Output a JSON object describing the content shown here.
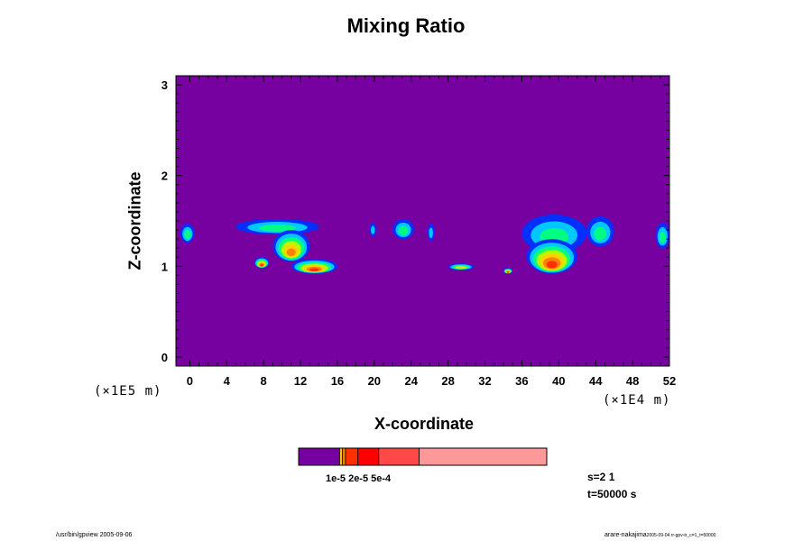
{
  "chart_data": {
    "type": "heatmap",
    "title": "Mixing Ratio",
    "xlabel": "X-coordinate",
    "ylabel": "Z-coordinate",
    "x_unit": "(×1E4 m)",
    "y_unit": "(×1E5 m)",
    "xlim": [
      -1.5,
      52
    ],
    "ylim": [
      -0.1,
      3.1
    ],
    "x_ticks": [
      0,
      4,
      8,
      12,
      16,
      20,
      24,
      28,
      32,
      36,
      40,
      44,
      48,
      52
    ],
    "y_ticks": [
      0,
      1,
      2,
      3
    ],
    "background_color": "#7700a0",
    "shade_colors": [
      "#0030ff",
      "#00c8ff",
      "#00ff80",
      "#b0ff00",
      "#ffd000",
      "#ff8000",
      "#ff3000"
    ],
    "clouds": [
      {
        "x": [
          -1.0,
          0.5
        ],
        "z_range": [
          1.26,
          1.47
        ],
        "peak": 2
      },
      {
        "x": [
          5.0,
          14.0
        ],
        "z_range": [
          1.35,
          1.52
        ],
        "peak": 2
      },
      {
        "x": [
          9.0,
          13.0
        ],
        "z_range": [
          1.05,
          1.4
        ],
        "peak": 5
      },
      {
        "x": [
          7.0,
          8.6
        ],
        "z_range": [
          0.98,
          1.1
        ],
        "peak": 6
      },
      {
        "x": [
          11.0,
          16.0
        ],
        "z_range": [
          0.92,
          1.08
        ],
        "peak": 6
      },
      {
        "x": [
          19.5,
          20.2
        ],
        "z_range": [
          1.33,
          1.48
        ],
        "peak": 1
      },
      {
        "x": [
          22.0,
          24.3
        ],
        "z_range": [
          1.3,
          1.52
        ],
        "peak": 2
      },
      {
        "x": [
          25.8,
          26.5
        ],
        "z_range": [
          1.28,
          1.47
        ],
        "peak": 1
      },
      {
        "x": [
          28.0,
          30.8
        ],
        "z_range": [
          0.96,
          1.03
        ],
        "peak": 4
      },
      {
        "x": [
          34.0,
          35.0
        ],
        "z_range": [
          0.92,
          0.98
        ],
        "peak": 6
      },
      {
        "x": [
          36.0,
          43.0
        ],
        "z_range": [
          1.15,
          1.57
        ],
        "peak": 2
      },
      {
        "x": [
          36.5,
          42.0
        ],
        "z_range": [
          0.92,
          1.3
        ],
        "peak": 6
      },
      {
        "x": [
          43.0,
          46.0
        ],
        "z_range": [
          1.22,
          1.55
        ],
        "peak": 2
      },
      {
        "x": [
          50.5,
          52.0
        ],
        "z_range": [
          1.2,
          1.48
        ],
        "peak": 2
      }
    ],
    "colorbar": {
      "colors": [
        "#7700a0",
        "#ffc000",
        "#ff8000",
        "#ff3000",
        "#ff0000",
        "#ff4848",
        "#ff9898"
      ],
      "widths": [
        16.5,
        1.2,
        1.2,
        5,
        8.4,
        16.3,
        51.4
      ],
      "label": "1e-5 2e-5 5e-4"
    },
    "colorbar_info": {
      "s": "s=2 1",
      "t": "t=50000 s"
    }
  },
  "footer": {
    "left": "/usr/bin/gpview 2005-09-06",
    "right": "arare-nakajima",
    "right_small": "2005-09-04 rr-gpv-tr_c=1_t=50000"
  }
}
